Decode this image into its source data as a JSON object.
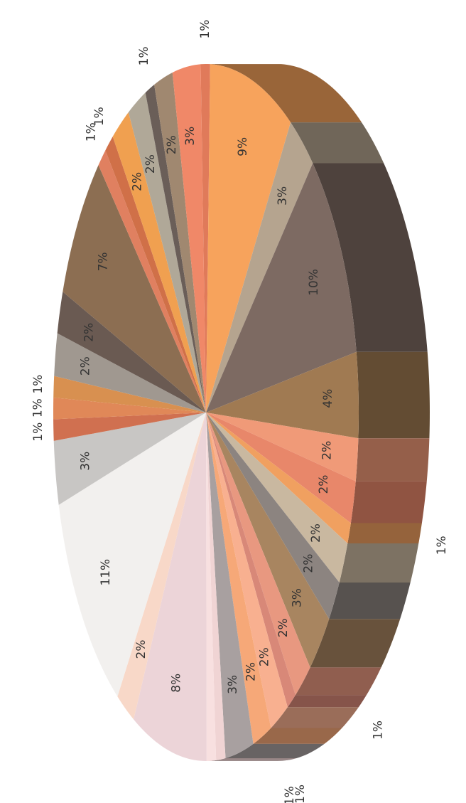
{
  "chart_data": {
    "type": "pie",
    "values": [
      1,
      9,
      3,
      10,
      4,
      2,
      2,
      1,
      2,
      2,
      3,
      2,
      1,
      2,
      2,
      3,
      1,
      1,
      8,
      2,
      11,
      3,
      1,
      1,
      1,
      2,
      2,
      7,
      1,
      1,
      2,
      2,
      1,
      2,
      3
    ],
    "value_labels": [
      "1%",
      "9%",
      "3%",
      "10%",
      "4%",
      "2%",
      "2%",
      "1%",
      "2%",
      "2%",
      "3%",
      "2%",
      "1%",
      "2%",
      "2%",
      "3%",
      "1%",
      "1%",
      "8%",
      "2%",
      "11%",
      "3%",
      "1%",
      "1%",
      "1%",
      "2%",
      "2%",
      "7%",
      "1%",
      "1%",
      "2%",
      "2%",
      "1%",
      "2%",
      "3%"
    ],
    "colors": [
      "#e07a5a",
      "#f7a35c",
      "#b5a48f",
      "#7d6a62",
      "#a07a52",
      "#f09a78",
      "#e8876a",
      "#f0a060",
      "#c9b8a0",
      "#8c8480",
      "#a88560",
      "#e89880",
      "#d88878",
      "#f8b090",
      "#f6a878",
      "#a8a0a0",
      "#f0d4d4",
      "#f8e0e0",
      "#ecd4d8",
      "#f8d8c8",
      "#f2f0ee",
      "#c8c6c4",
      "#d07050",
      "#e08858",
      "#d89050",
      "#a09890",
      "#6a5a52",
      "#8c6e52",
      "#e08060",
      "#d07048",
      "#f0a050",
      "#b0a898",
      "#6a5e58",
      "#a08870",
      "#f08868"
    ]
  }
}
